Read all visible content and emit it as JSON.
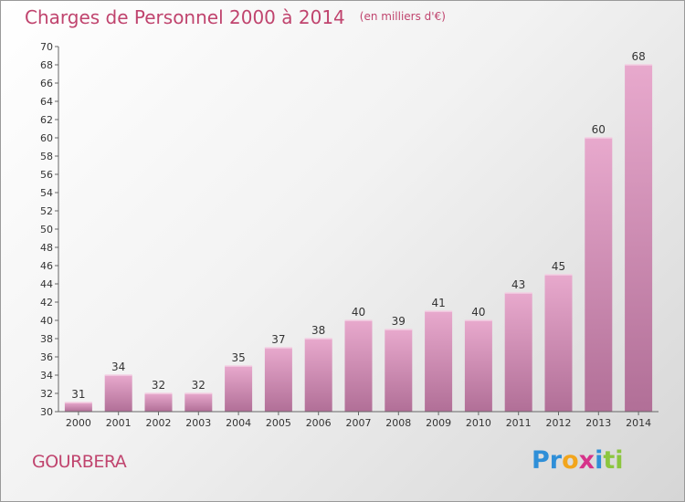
{
  "title": "Charges de Personnel 2000 à 2014",
  "subtitle": "(en milliers d'€)",
  "commune": "GOURBERA",
  "logo": {
    "part1": "Pr",
    "part2": "o",
    "part3": "x",
    "part4": "i",
    "part5": "ti"
  },
  "colors": {
    "bar_top": "#e8a9cd",
    "bar_bottom": "#b16f97",
    "text_accent": "#c0446e"
  },
  "chart_data": {
    "type": "bar",
    "categories": [
      "2000",
      "2001",
      "2002",
      "2003",
      "2004",
      "2005",
      "2006",
      "2007",
      "2008",
      "2009",
      "2010",
      "2011",
      "2012",
      "2013",
      "2014"
    ],
    "values": [
      31,
      34,
      32,
      32,
      35,
      37,
      38,
      40,
      39,
      41,
      40,
      43,
      45,
      60,
      68
    ],
    "ylim": [
      30,
      70
    ],
    "ytick_step": 2,
    "grid": false,
    "legend": "none"
  }
}
